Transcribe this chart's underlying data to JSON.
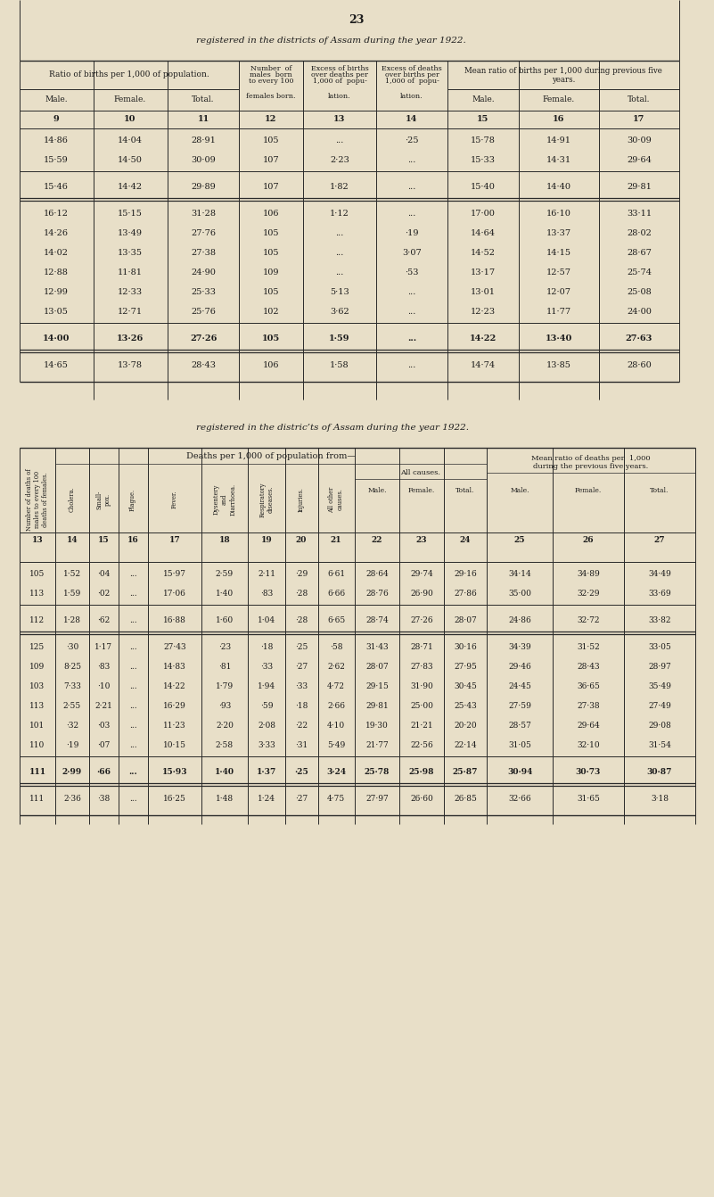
{
  "page_number": "23",
  "subtitle1": "registered in the districts of Assam during the year 1922.",
  "subtitle2": "registered in the distric’ts of Assam during the year 1922.",
  "bg_color": "#e8dfc8",
  "table1": {
    "col_nums": [
      "9",
      "10",
      "11",
      "12",
      "13",
      "14",
      "15",
      "16",
      "17"
    ],
    "rows": [
      [
        "14·86",
        "14·04",
        "28·91",
        "105",
        "...",
        "·25",
        "15·78",
        "14·91",
        "30·09"
      ],
      [
        "15·59",
        "14·50",
        "30·09",
        "107",
        "2·23",
        "...",
        "15·33",
        "14·31",
        "29·64"
      ],
      [
        "15·46",
        "14·42",
        "29·89",
        "107",
        "1·82",
        "...",
        "15·40",
        "14·40",
        "29·81"
      ],
      [
        "16·12",
        "15·15",
        "31·28",
        "106",
        "1·12",
        "...",
        "17·00",
        "16·10",
        "33·11"
      ],
      [
        "14·26",
        "13·49",
        "27·76",
        "105",
        "...",
        "·19",
        "14·64",
        "13·37",
        "28·02"
      ],
      [
        "14·02",
        "13·35",
        "27·38",
        "105",
        "...",
        "3·07",
        "14·52",
        "14·15",
        "28·67"
      ],
      [
        "12·88",
        "11·81",
        "24·90",
        "109",
        "...",
        "·53",
        "13·17",
        "12·57",
        "25·74"
      ],
      [
        "12·99",
        "12·33",
        "25·33",
        "105",
        "5·13",
        "...",
        "13·01",
        "12·07",
        "25·08"
      ],
      [
        "13·05",
        "12·71",
        "25·76",
        "102",
        "3·62",
        "...",
        "12·23",
        "11·77",
        "24·00"
      ],
      [
        "14·00",
        "13·26",
        "27·26",
        "105",
        "1·59",
        "...",
        "14·22",
        "13·40",
        "27·63"
      ],
      [
        "14·65",
        "13·78",
        "28·43",
        "106",
        "1·58",
        "...",
        "14·74",
        "13·85",
        "28·60"
      ]
    ]
  },
  "table2": {
    "col_nums": [
      "13",
      "14",
      "15",
      "16",
      "17",
      "18",
      "19",
      "20",
      "21",
      "22",
      "23",
      "24",
      "25",
      "26",
      "27"
    ],
    "rows": [
      [
        "105",
        "1·52",
        "·04",
        "...",
        "15·97",
        "2·59",
        "2·11",
        "·29",
        "6·61",
        "28·64",
        "29·74",
        "29·16",
        "34·14",
        "34·89",
        "34·49"
      ],
      [
        "113",
        "1·59",
        "·02",
        "...",
        "17·06",
        "1·40",
        "·83",
        "·28",
        "6·66",
        "28·76",
        "26·90",
        "27·86",
        "35·00",
        "32·29",
        "33·69"
      ],
      [
        "112",
        "1·28",
        "·62",
        "...",
        "16·88",
        "1·60",
        "1·04",
        "·28",
        "6·65",
        "28·74",
        "27·26",
        "28·07",
        "24·86",
        "32·72",
        "33·82"
      ],
      [
        "125",
        "·30",
        "1·17",
        "...",
        "27·43",
        "·23",
        "·18",
        "·25",
        "·58",
        "31·43",
        "28·71",
        "30·16",
        "34·39",
        "31·52",
        "33·05"
      ],
      [
        "109",
        "8·25",
        "·83",
        "...",
        "14·83",
        "·81",
        "·33",
        "·27",
        "2·62",
        "28·07",
        "27·83",
        "27·95",
        "29·46",
        "28·43",
        "28·97"
      ],
      [
        "103",
        "7·33",
        "·10",
        "...",
        "14·22",
        "1·79",
        "1·94",
        "·33",
        "4·72",
        "29·15",
        "31·90",
        "30·45",
        "24·45",
        "36·65",
        "35·49"
      ],
      [
        "113",
        "2·55",
        "2·21",
        "...",
        "16·29",
        "·93",
        "·59",
        "·18",
        "2·66",
        "29·81",
        "25·00",
        "25·43",
        "27·59",
        "27·38",
        "27·49"
      ],
      [
        "101",
        "·32",
        "·03",
        "...",
        "11·23",
        "2·20",
        "2·08",
        "·22",
        "4·10",
        "19·30",
        "21·21",
        "20·20",
        "28·57",
        "29·64",
        "29·08"
      ],
      [
        "110",
        "·19",
        "·07",
        "...",
        "10·15",
        "2·58",
        "3·33",
        "·31",
        "5·49",
        "21·77",
        "22·56",
        "22·14",
        "31·05",
        "32·10",
        "31·54"
      ],
      [
        "111",
        "2·99",
        "·66",
        "...",
        "15·93",
        "1·40",
        "1·37",
        "·25",
        "3·24",
        "25·78",
        "25·98",
        "25·87",
        "30·94",
        "30·73",
        "30·87"
      ],
      [
        "111",
        "2·36",
        "·38",
        "...",
        "16·25",
        "1·48",
        "1·24",
        "·27",
        "4·75",
        "27·97",
        "26·60",
        "26·85",
        "32·66",
        "31·65",
        "3·18"
      ]
    ]
  }
}
